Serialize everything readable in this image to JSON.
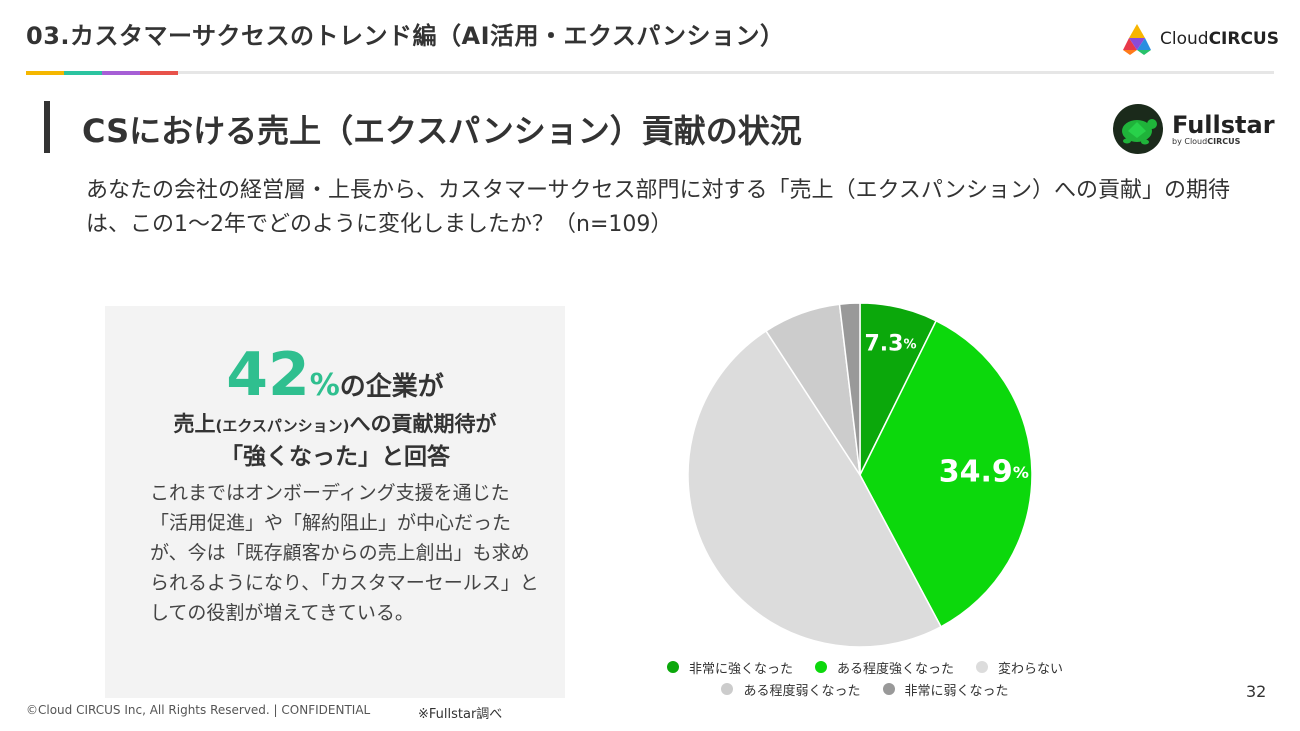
{
  "header": {
    "section_title": "03.カスタマーサクセスのトレンド編（AI活用・エクスパンション）",
    "brand_light": "Cloud",
    "brand_bold": "CIRCUS",
    "strip_colors": [
      "#f5b700",
      "#2bc4a0",
      "#a65fd6",
      "#e8524a"
    ]
  },
  "slide": {
    "title": "CSにおける売上（エクスパンション）貢献の状況",
    "fullstar_name": "Fullstar",
    "fullstar_sub_prefix": "by Cloud",
    "fullstar_sub_bold": "CIRCUS",
    "question": "あなたの会社の経営層・上長から、カスタマーサクセス部門に対する「売上（エクスパンション）への貢献」の期待は、この1〜2年でどのように変化しましたか？（n=109）"
  },
  "highlight": {
    "big_number": "42",
    "big_unit": "%",
    "big_tail": "の企業が",
    "line2_a": "売上",
    "line2_small": "(エクスパンション)",
    "line2_b": "への貢献期待が",
    "line3": "「強くなった」と回答",
    "body": "これまではオンボーディング支援を通じた「活用促進」や「解約阻止」が中心だったが、今は「既存顧客からの売上創出」も求められるようになり、「カスタマーセールス」としての役割が増えてきている。"
  },
  "chart_data": {
    "type": "pie",
    "slices": [
      {
        "label": "非常に強くなった",
        "value": 7.3,
        "value_label": "7.3",
        "color": "#0ba80b"
      },
      {
        "label": "ある程度強くなった",
        "value": 34.9,
        "value_label": "34.9",
        "color": "#0cd80c"
      },
      {
        "label": "変わらない",
        "value": 48.6,
        "value_label": "",
        "color": "#dcdcdc"
      },
      {
        "label": "ある程度弱くなった",
        "value": 7.3,
        "value_label": "",
        "color": "#cccccc"
      },
      {
        "label": "非常に弱くなった",
        "value": 1.9,
        "value_label": "",
        "color": "#999999"
      }
    ],
    "unit": "%",
    "legend_position": "bottom"
  },
  "footer": {
    "copyright": "©Cloud CIRCUS Inc, All Rights Reserved. | CONFIDENTIAL",
    "source": "※Fullstar調べ",
    "page_number": "32"
  }
}
